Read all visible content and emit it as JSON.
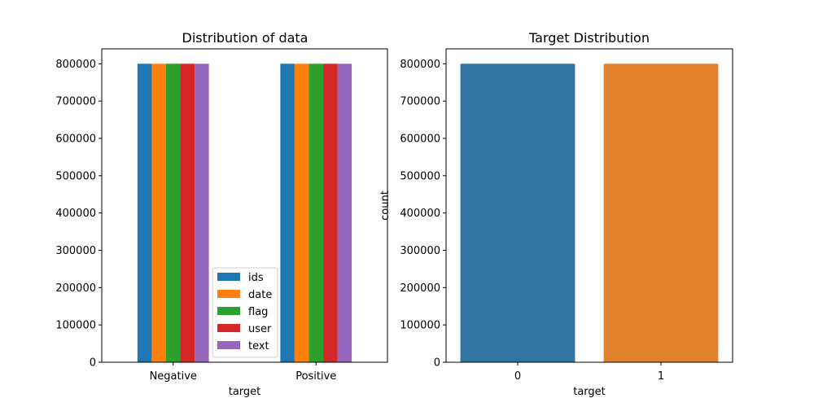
{
  "chart_data": [
    {
      "type": "bar",
      "title": "Distribution of data",
      "xlabel": "target",
      "ylabel": "",
      "categories": [
        "Negative",
        "Positive"
      ],
      "ylim": [
        0,
        840000
      ],
      "yticks": [
        0,
        100000,
        200000,
        300000,
        400000,
        500000,
        600000,
        700000,
        800000
      ],
      "grid": false,
      "legend": "lower-right",
      "series": [
        {
          "name": "ids",
          "values": [
            800000,
            800000
          ],
          "color": "#1f77b4"
        },
        {
          "name": "date",
          "values": [
            800000,
            800000
          ],
          "color": "#ff7f0e"
        },
        {
          "name": "flag",
          "values": [
            800000,
            800000
          ],
          "color": "#2ca02c"
        },
        {
          "name": "user",
          "values": [
            800000,
            800000
          ],
          "color": "#d62728"
        },
        {
          "name": "text",
          "values": [
            800000,
            800000
          ],
          "color": "#9467bd"
        }
      ]
    },
    {
      "type": "bar",
      "title": "Target Distribution",
      "xlabel": "target",
      "ylabel": "count",
      "categories": [
        "0",
        "1"
      ],
      "values": [
        800000,
        800000
      ],
      "colors": [
        "#3274a1",
        "#e1812c"
      ],
      "ylim": [
        0,
        840000
      ],
      "yticks": [
        0,
        100000,
        200000,
        300000,
        400000,
        500000,
        600000,
        700000,
        800000
      ],
      "grid": false
    }
  ]
}
